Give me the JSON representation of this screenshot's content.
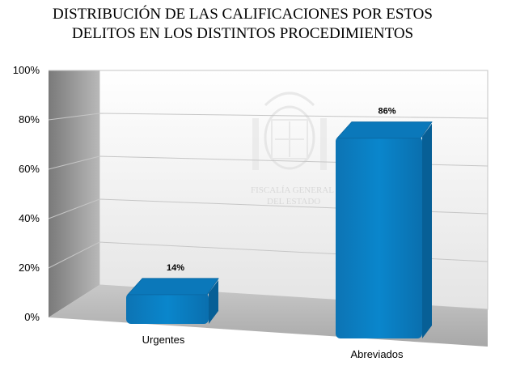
{
  "chart_data": {
    "type": "bar",
    "title": "DISTRIBUCIÓN DE LAS CALIFICACIONES POR ESTOS DELITOS EN LOS DISTINTOS PROCEDIMIENTOS",
    "title_lines": [
      "DISTRIBUCIÓN DE LAS CALIFICACIONES POR ESTOS",
      "DELITOS EN LOS DISTINTOS PROCEDIMIENTOS"
    ],
    "categories": [
      "Urgentes",
      "Abreviados"
    ],
    "values": [
      14,
      86
    ],
    "data_labels": [
      "14%",
      "86%"
    ],
    "y_ticks": [
      "0%",
      "20%",
      "40%",
      "60%",
      "80%",
      "100%"
    ],
    "ylim": [
      0,
      100
    ],
    "grid": true,
    "legend": "none",
    "bar_color": "#0a7ec2",
    "watermark_lines": [
      "FISCALÍA GENERAL",
      "DEL ESTADO"
    ]
  }
}
